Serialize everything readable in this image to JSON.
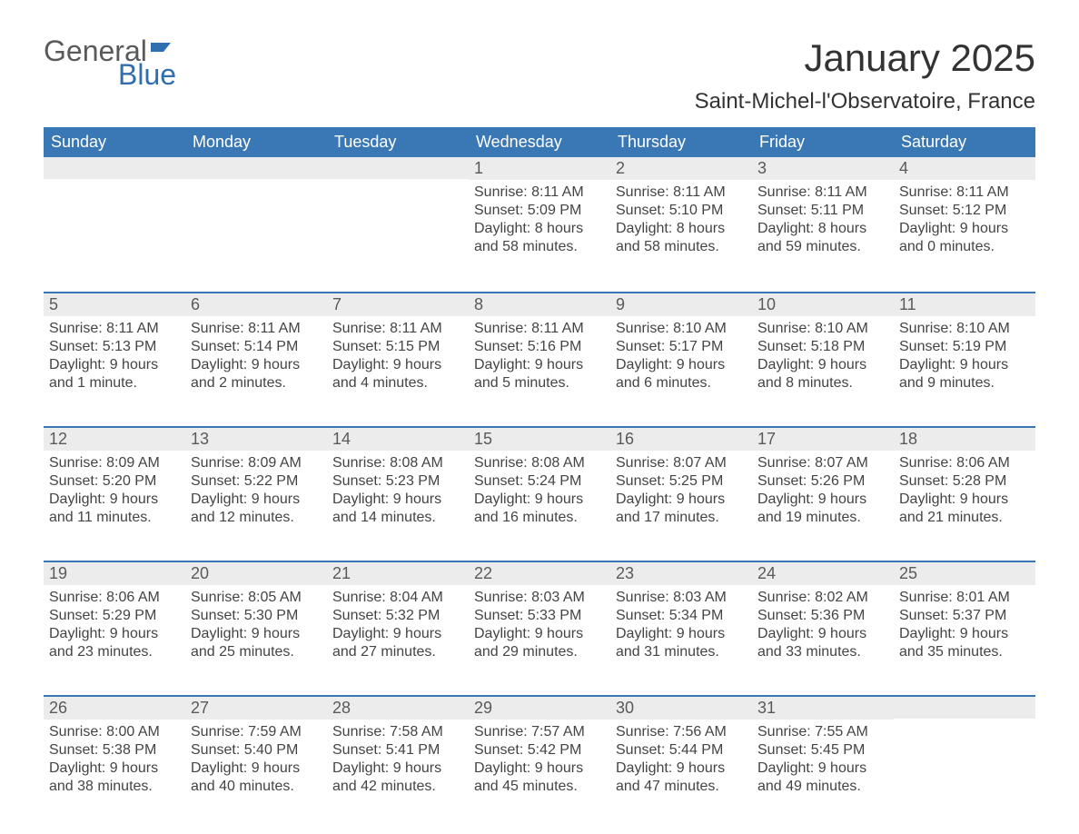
{
  "logo": {
    "word1": "General",
    "word2": "Blue"
  },
  "title": "January 2025",
  "location": "Saint-Michel-l'Observatoire, France",
  "header_bg": "#3a78b5",
  "header_fg": "#ffffff",
  "daynum_bg": "#ececec",
  "week_border": "#3a78b5",
  "text_color": "#444444",
  "days_of_week": [
    "Sunday",
    "Monday",
    "Tuesday",
    "Wednesday",
    "Thursday",
    "Friday",
    "Saturday"
  ],
  "weeks": [
    [
      {
        "n": "",
        "sr": "",
        "ss": "",
        "d1": "",
        "d2": ""
      },
      {
        "n": "",
        "sr": "",
        "ss": "",
        "d1": "",
        "d2": ""
      },
      {
        "n": "",
        "sr": "",
        "ss": "",
        "d1": "",
        "d2": ""
      },
      {
        "n": "1",
        "sr": "Sunrise: 8:11 AM",
        "ss": "Sunset: 5:09 PM",
        "d1": "Daylight: 8 hours",
        "d2": "and 58 minutes."
      },
      {
        "n": "2",
        "sr": "Sunrise: 8:11 AM",
        "ss": "Sunset: 5:10 PM",
        "d1": "Daylight: 8 hours",
        "d2": "and 58 minutes."
      },
      {
        "n": "3",
        "sr": "Sunrise: 8:11 AM",
        "ss": "Sunset: 5:11 PM",
        "d1": "Daylight: 8 hours",
        "d2": "and 59 minutes."
      },
      {
        "n": "4",
        "sr": "Sunrise: 8:11 AM",
        "ss": "Sunset: 5:12 PM",
        "d1": "Daylight: 9 hours",
        "d2": "and 0 minutes."
      }
    ],
    [
      {
        "n": "5",
        "sr": "Sunrise: 8:11 AM",
        "ss": "Sunset: 5:13 PM",
        "d1": "Daylight: 9 hours",
        "d2": "and 1 minute."
      },
      {
        "n": "6",
        "sr": "Sunrise: 8:11 AM",
        "ss": "Sunset: 5:14 PM",
        "d1": "Daylight: 9 hours",
        "d2": "and 2 minutes."
      },
      {
        "n": "7",
        "sr": "Sunrise: 8:11 AM",
        "ss": "Sunset: 5:15 PM",
        "d1": "Daylight: 9 hours",
        "d2": "and 4 minutes."
      },
      {
        "n": "8",
        "sr": "Sunrise: 8:11 AM",
        "ss": "Sunset: 5:16 PM",
        "d1": "Daylight: 9 hours",
        "d2": "and 5 minutes."
      },
      {
        "n": "9",
        "sr": "Sunrise: 8:10 AM",
        "ss": "Sunset: 5:17 PM",
        "d1": "Daylight: 9 hours",
        "d2": "and 6 minutes."
      },
      {
        "n": "10",
        "sr": "Sunrise: 8:10 AM",
        "ss": "Sunset: 5:18 PM",
        "d1": "Daylight: 9 hours",
        "d2": "and 8 minutes."
      },
      {
        "n": "11",
        "sr": "Sunrise: 8:10 AM",
        "ss": "Sunset: 5:19 PM",
        "d1": "Daylight: 9 hours",
        "d2": "and 9 minutes."
      }
    ],
    [
      {
        "n": "12",
        "sr": "Sunrise: 8:09 AM",
        "ss": "Sunset: 5:20 PM",
        "d1": "Daylight: 9 hours",
        "d2": "and 11 minutes."
      },
      {
        "n": "13",
        "sr": "Sunrise: 8:09 AM",
        "ss": "Sunset: 5:22 PM",
        "d1": "Daylight: 9 hours",
        "d2": "and 12 minutes."
      },
      {
        "n": "14",
        "sr": "Sunrise: 8:08 AM",
        "ss": "Sunset: 5:23 PM",
        "d1": "Daylight: 9 hours",
        "d2": "and 14 minutes."
      },
      {
        "n": "15",
        "sr": "Sunrise: 8:08 AM",
        "ss": "Sunset: 5:24 PM",
        "d1": "Daylight: 9 hours",
        "d2": "and 16 minutes."
      },
      {
        "n": "16",
        "sr": "Sunrise: 8:07 AM",
        "ss": "Sunset: 5:25 PM",
        "d1": "Daylight: 9 hours",
        "d2": "and 17 minutes."
      },
      {
        "n": "17",
        "sr": "Sunrise: 8:07 AM",
        "ss": "Sunset: 5:26 PM",
        "d1": "Daylight: 9 hours",
        "d2": "and 19 minutes."
      },
      {
        "n": "18",
        "sr": "Sunrise: 8:06 AM",
        "ss": "Sunset: 5:28 PM",
        "d1": "Daylight: 9 hours",
        "d2": "and 21 minutes."
      }
    ],
    [
      {
        "n": "19",
        "sr": "Sunrise: 8:06 AM",
        "ss": "Sunset: 5:29 PM",
        "d1": "Daylight: 9 hours",
        "d2": "and 23 minutes."
      },
      {
        "n": "20",
        "sr": "Sunrise: 8:05 AM",
        "ss": "Sunset: 5:30 PM",
        "d1": "Daylight: 9 hours",
        "d2": "and 25 minutes."
      },
      {
        "n": "21",
        "sr": "Sunrise: 8:04 AM",
        "ss": "Sunset: 5:32 PM",
        "d1": "Daylight: 9 hours",
        "d2": "and 27 minutes."
      },
      {
        "n": "22",
        "sr": "Sunrise: 8:03 AM",
        "ss": "Sunset: 5:33 PM",
        "d1": "Daylight: 9 hours",
        "d2": "and 29 minutes."
      },
      {
        "n": "23",
        "sr": "Sunrise: 8:03 AM",
        "ss": "Sunset: 5:34 PM",
        "d1": "Daylight: 9 hours",
        "d2": "and 31 minutes."
      },
      {
        "n": "24",
        "sr": "Sunrise: 8:02 AM",
        "ss": "Sunset: 5:36 PM",
        "d1": "Daylight: 9 hours",
        "d2": "and 33 minutes."
      },
      {
        "n": "25",
        "sr": "Sunrise: 8:01 AM",
        "ss": "Sunset: 5:37 PM",
        "d1": "Daylight: 9 hours",
        "d2": "and 35 minutes."
      }
    ],
    [
      {
        "n": "26",
        "sr": "Sunrise: 8:00 AM",
        "ss": "Sunset: 5:38 PM",
        "d1": "Daylight: 9 hours",
        "d2": "and 38 minutes."
      },
      {
        "n": "27",
        "sr": "Sunrise: 7:59 AM",
        "ss": "Sunset: 5:40 PM",
        "d1": "Daylight: 9 hours",
        "d2": "and 40 minutes."
      },
      {
        "n": "28",
        "sr": "Sunrise: 7:58 AM",
        "ss": "Sunset: 5:41 PM",
        "d1": "Daylight: 9 hours",
        "d2": "and 42 minutes."
      },
      {
        "n": "29",
        "sr": "Sunrise: 7:57 AM",
        "ss": "Sunset: 5:42 PM",
        "d1": "Daylight: 9 hours",
        "d2": "and 45 minutes."
      },
      {
        "n": "30",
        "sr": "Sunrise: 7:56 AM",
        "ss": "Sunset: 5:44 PM",
        "d1": "Daylight: 9 hours",
        "d2": "and 47 minutes."
      },
      {
        "n": "31",
        "sr": "Sunrise: 7:55 AM",
        "ss": "Sunset: 5:45 PM",
        "d1": "Daylight: 9 hours",
        "d2": "and 49 minutes."
      },
      {
        "n": "",
        "sr": "",
        "ss": "",
        "d1": "",
        "d2": ""
      }
    ]
  ]
}
